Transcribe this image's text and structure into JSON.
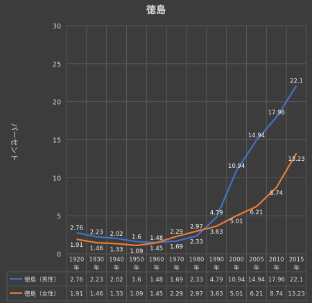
{
  "chart_data": {
    "type": "line",
    "title": "徳島",
    "ylabel": "パーセント",
    "ylim": [
      0,
      30
    ],
    "yticks": [
      0,
      5,
      10,
      15,
      20,
      25,
      30
    ],
    "categories": [
      "1920年",
      "1930年",
      "1940年",
      "1950年",
      "1960年",
      "1970年",
      "1980年",
      "1990年",
      "2000年",
      "2005年",
      "2010年",
      "2015年"
    ],
    "category_years": [
      "1920",
      "1930",
      "1940",
      "1950",
      "1960",
      "1970",
      "1980",
      "1990",
      "2000",
      "2005",
      "2010",
      "2015"
    ],
    "category_unit": "年",
    "series": [
      {
        "name": "徳島（男性）",
        "color": "#4472c4",
        "values": [
          2.76,
          2.23,
          2.02,
          1.6,
          1.48,
          1.69,
          2.33,
          4.79,
          10.94,
          14.94,
          17.96,
          22.1
        ]
      },
      {
        "name": "徳島（女性）",
        "color": "#ed7d31",
        "values": [
          1.91,
          1.46,
          1.33,
          1.09,
          1.45,
          2.29,
          2.97,
          3.63,
          5.01,
          6.21,
          8.74,
          13.23
        ]
      }
    ],
    "grid": true,
    "legend": "data-table",
    "colors": {
      "background": "#3c3c3c",
      "grid": "#595959",
      "text": "#d9d9d9"
    }
  }
}
